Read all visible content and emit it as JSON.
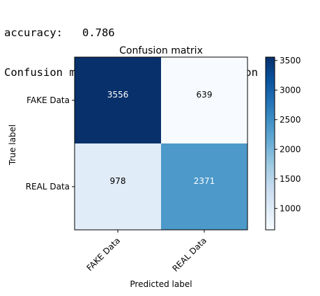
{
  "console": {
    "accuracy_line": "accuracy:   0.786",
    "caption_line": "Confusion matrix, without normalization"
  },
  "chart_data": {
    "type": "heatmap",
    "title": "Confusion matrix",
    "xlabel": "Predicted label",
    "ylabel": "True label",
    "x_categories": [
      "FAKE Data",
      "REAL Data"
    ],
    "y_categories": [
      "FAKE Data",
      "REAL Data"
    ],
    "values": [
      [
        3556,
        639
      ],
      [
        978,
        2371
      ]
    ],
    "colormap": "Blues",
    "color_min": 639,
    "color_max": 3556,
    "colorbar_ticks": [
      1000,
      1500,
      2000,
      2500,
      3000,
      3500
    ],
    "grid": false,
    "legend": "colorbar-right"
  }
}
